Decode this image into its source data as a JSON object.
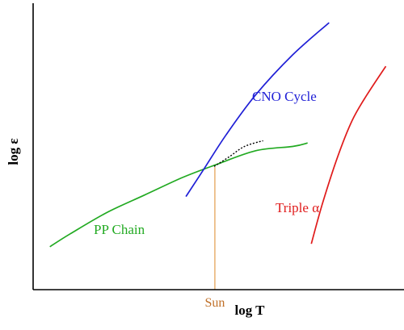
{
  "chart_data": {
    "type": "line",
    "title": "",
    "xlabel": "log T",
    "ylabel": "log ε",
    "xlim": [
      0,
      1
    ],
    "ylim": [
      0,
      1
    ],
    "grid": false,
    "legend": "none",
    "series": [
      {
        "name": "PP Chain",
        "color": "#22aa22",
        "points": [
          [
            0.045,
            0.15
          ],
          [
            0.1,
            0.195
          ],
          [
            0.2,
            0.27
          ],
          [
            0.3,
            0.33
          ],
          [
            0.4,
            0.39
          ],
          [
            0.49,
            0.435
          ],
          [
            0.6,
            0.485
          ],
          [
            0.7,
            0.5
          ],
          [
            0.74,
            0.512
          ]
        ]
      },
      {
        "name": "CNO Cycle",
        "color": "#1f1fd6",
        "points": [
          [
            0.412,
            0.325
          ],
          [
            0.46,
            0.42
          ],
          [
            0.52,
            0.54
          ],
          [
            0.6,
            0.68
          ],
          [
            0.7,
            0.82
          ],
          [
            0.798,
            0.932
          ]
        ]
      },
      {
        "name": "Triple α",
        "color": "#e01b1b",
        "points": [
          [
            0.75,
            0.16
          ],
          [
            0.78,
            0.3
          ],
          [
            0.82,
            0.46
          ],
          [
            0.86,
            0.59
          ],
          [
            0.9,
            0.68
          ],
          [
            0.951,
            0.78
          ]
        ]
      }
    ],
    "crossover_curve": {
      "style": "dotted",
      "color": "#000000",
      "points": [
        [
          0.488,
          0.43
        ],
        [
          0.53,
          0.465
        ],
        [
          0.57,
          0.5
        ],
        [
          0.62,
          0.52
        ]
      ]
    },
    "marker": {
      "label": "Sun",
      "x": 0.49,
      "color": "#e8b070",
      "label_color": "#c07028"
    }
  }
}
